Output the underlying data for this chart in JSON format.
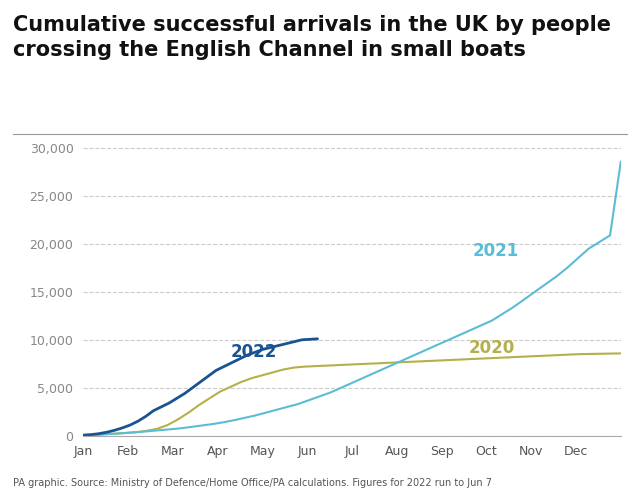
{
  "title": "Cumulative successful arrivals in the UK by people\ncrossing the English Channel in small boats",
  "title_fontsize": 15,
  "title_fontweight": "bold",
  "source_text": "PA graphic. Source: Ministry of Defence/Home Office/PA calculations. Figures for 2022 run to Jun 7",
  "background_color": "#ffffff",
  "grid_color": "#cccccc",
  "ylabel_ticks": [
    0,
    5000,
    10000,
    15000,
    20000,
    25000,
    30000
  ],
  "x_labels": [
    "Jan",
    "Feb",
    "Mar",
    "Apr",
    "May",
    "Jun",
    "Jul",
    "Aug",
    "Sep",
    "Oct",
    "Nov",
    "Dec"
  ],
  "ylim": [
    0,
    31000
  ],
  "line_2020_color": "#b5b04a",
  "line_2021_color": "#5bbcd6",
  "line_2022_color": "#1a5490",
  "label_2020": "2020",
  "label_2021": "2021",
  "label_2022": "2022",
  "label_fontsize": 12,
  "label_fontweight": "bold",
  "series_2020": [
    50,
    80,
    130,
    200,
    270,
    350,
    500,
    700,
    1100,
    1700,
    2400,
    3200,
    3900,
    4600,
    5100,
    5600,
    6000,
    6300,
    6600,
    6900,
    7100,
    7200,
    7250,
    7300,
    7350,
    7400,
    7450,
    7500,
    7550,
    7600,
    7650,
    7700,
    7750,
    7800,
    7850,
    7900,
    7950,
    8000,
    8050,
    8100,
    8150,
    8200,
    8250,
    8300,
    8350,
    8400,
    8450,
    8500,
    8520,
    8540,
    8560,
    8580
  ],
  "series_2021": [
    50,
    100,
    150,
    200,
    280,
    360,
    450,
    550,
    650,
    750,
    900,
    1050,
    1200,
    1380,
    1600,
    1850,
    2100,
    2400,
    2700,
    3000,
    3300,
    3700,
    4100,
    4500,
    5000,
    5500,
    6000,
    6500,
    7000,
    7500,
    8000,
    8500,
    9000,
    9500,
    10000,
    10500,
    11000,
    11500,
    12000,
    12700,
    13400,
    14200,
    15000,
    15800,
    16600,
    17500,
    18500,
    19500,
    20200,
    20900,
    28600
  ],
  "series_2022": [
    50,
    100,
    200,
    350,
    550,
    800,
    1100,
    1500,
    2000,
    2600,
    3000,
    3400,
    3900,
    4400,
    5000,
    5600,
    6200,
    6800,
    7200,
    7600,
    8000,
    8400,
    8700,
    9000,
    9200,
    9400,
    9600,
    9800,
    10000,
    10050,
    10100
  ],
  "n_2020": 52,
  "n_2021": 51,
  "n_2022": 31
}
